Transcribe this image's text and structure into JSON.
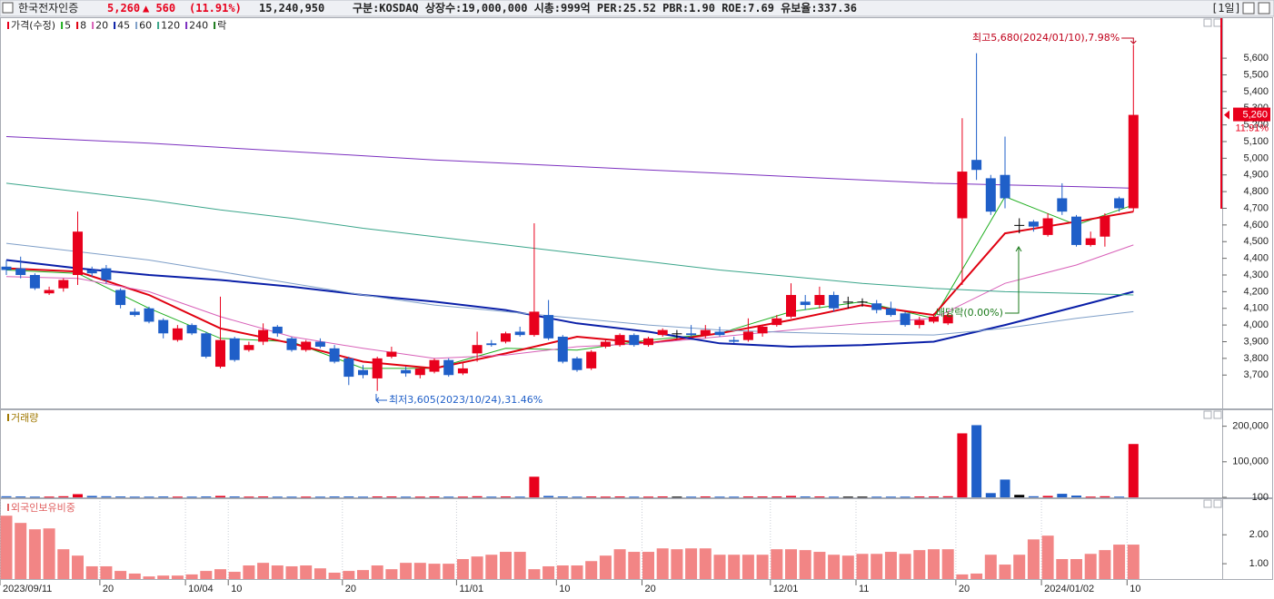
{
  "header": {
    "name": "한국전자인증",
    "price": "5,260",
    "change": "▲ 560",
    "change_pct": "(11.91%)",
    "volume": "15,240,950",
    "info": "구분:KOSDAQ 상장수:19,000,000 시총:999억 PER:25.52 PBR:1.90 ROE:7.69 유보율:337.36",
    "period": "[1일]"
  },
  "chart_data": [
    {
      "type": "candlestick",
      "price_legend": "가격(수정)",
      "ex_dividend_legend": "락",
      "up_color": "#e8001c",
      "down_color": "#1f5fc8",
      "flat_color": "#000000",
      "last_price_label": "5,260",
      "last_change_label": "11.91%",
      "annotations": [
        "최고5,680(2024/01/10),7.98%",
        "최저3,605(2023/10/24),31.46%",
        "배당락(0.00%)"
      ],
      "categories": [
        "2023/09/11",
        null,
        null,
        null,
        null,
        null,
        null,
        "20",
        null,
        null,
        null,
        null,
        null,
        "10/04",
        null,
        null,
        "10",
        null,
        null,
        null,
        null,
        null,
        null,
        null,
        "20",
        null,
        null,
        null,
        null,
        null,
        null,
        null,
        "11/01",
        null,
        null,
        null,
        null,
        null,
        null,
        "10",
        null,
        null,
        null,
        null,
        null,
        "20",
        null,
        null,
        null,
        null,
        null,
        null,
        null,
        null,
        "12/01",
        null,
        null,
        null,
        null,
        null,
        "11",
        null,
        null,
        null,
        null,
        null,
        null,
        "20",
        null,
        null,
        null,
        null,
        null,
        "2024/01/02",
        null,
        null,
        null,
        null,
        null,
        "10"
      ],
      "open": [
        4350,
        4340,
        4300,
        4190,
        4220,
        4300,
        4330,
        4340,
        4210,
        4080,
        4100,
        4030,
        3910,
        4000,
        3950,
        3750,
        3920,
        3850,
        3900,
        3990,
        3920,
        3850,
        3900,
        3860,
        3800,
        3730,
        3680,
        3810,
        3730,
        3700,
        3720,
        3790,
        3710,
        3830,
        3890,
        3900,
        3960,
        3940,
        4060,
        3930,
        3800,
        3740,
        3870,
        3880,
        3940,
        3880,
        3940,
        3950,
        3950,
        3940,
        3960,
        3910,
        3910,
        3950,
        4000,
        4050,
        4140,
        4120,
        4180,
        4140,
        4140,
        4130,
        4100,
        4070,
        4000,
        4020,
        4010,
        4640,
        4990,
        4880,
        4900,
        4600,
        4620,
        4540,
        4760,
        4650,
        4480,
        4530,
        4760,
        4700
      ],
      "high": [
        4390,
        4410,
        4310,
        4230,
        4280,
        4680,
        4350,
        4360,
        4220,
        4100,
        4110,
        4040,
        4000,
        4010,
        3960,
        4170,
        3930,
        3900,
        4010,
        4000,
        3930,
        3910,
        3920,
        3880,
        3810,
        3760,
        3810,
        3870,
        3750,
        3750,
        3800,
        3800,
        3780,
        3960,
        3910,
        3960,
        3990,
        4610,
        4150,
        3940,
        3810,
        3850,
        3910,
        3950,
        3950,
        3930,
        3980,
        3970,
        4000,
        4000,
        3990,
        3930,
        4040,
        4000,
        4060,
        4250,
        4180,
        4230,
        4200,
        4170,
        4160,
        4150,
        4140,
        4080,
        4050,
        4070,
        4080,
        5240,
        5630,
        4900,
        5130,
        4640,
        4630,
        4670,
        4850,
        4660,
        4560,
        4670,
        4770,
        5680
      ],
      "low": [
        4300,
        4280,
        4210,
        4180,
        4200,
        4240,
        4290,
        4250,
        4100,
        4050,
        4010,
        3920,
        3900,
        3940,
        3800,
        3740,
        3780,
        3840,
        3880,
        3930,
        3840,
        3840,
        3860,
        3770,
        3640,
        3680,
        3605,
        3800,
        3690,
        3680,
        3710,
        3690,
        3700,
        3780,
        3870,
        3890,
        3930,
        3930,
        3910,
        3770,
        3720,
        3730,
        3860,
        3870,
        3870,
        3870,
        3930,
        3920,
        3930,
        3920,
        3930,
        3890,
        3900,
        3930,
        3990,
        4040,
        4090,
        4100,
        4080,
        4100,
        4110,
        4070,
        4050,
        3990,
        3980,
        4010,
        4000,
        4240,
        4870,
        4660,
        4700,
        4550,
        4560,
        4530,
        4660,
        4470,
        4470,
        4470,
        4680,
        4680
      ],
      "close": [
        4330,
        4300,
        4220,
        4210,
        4270,
        4560,
        4310,
        4270,
        4120,
        4060,
        4020,
        3950,
        3980,
        3950,
        3810,
        3910,
        3790,
        3880,
        3970,
        3950,
        3850,
        3900,
        3870,
        3780,
        3690,
        3700,
        3800,
        3840,
        3710,
        3740,
        3790,
        3700,
        3740,
        3880,
        3880,
        3950,
        3940,
        4080,
        3920,
        3780,
        3730,
        3840,
        3900,
        3940,
        3880,
        3920,
        3970,
        3950,
        3940,
        3970,
        3940,
        3900,
        3960,
        3990,
        4040,
        4180,
        4120,
        4180,
        4100,
        4140,
        4140,
        4090,
        4060,
        4000,
        4030,
        4050,
        4060,
        4920,
        4930,
        4680,
        4760,
        4600,
        4590,
        4640,
        4680,
        4480,
        4520,
        4650,
        4700,
        5260
      ],
      "series": [
        {
          "name": "5",
          "color": "#1fae1f",
          "x": [
            0,
            5,
            10,
            15,
            20,
            25,
            30,
            35,
            40,
            45,
            50,
            55,
            60,
            65,
            70,
            75,
            79
          ],
          "values": [
            4330,
            4310,
            4100,
            3920,
            3900,
            3740,
            3740,
            3860,
            3850,
            3910,
            3950,
            4080,
            4140,
            4040,
            4770,
            4600,
            4720
          ]
        },
        {
          "name": "8",
          "color": "#e00010",
          "x": [
            0,
            5,
            10,
            15,
            20,
            25,
            30,
            35,
            40,
            45,
            50,
            55,
            60,
            65,
            70,
            75,
            79
          ],
          "values": [
            4340,
            4320,
            4180,
            3980,
            3890,
            3780,
            3740,
            3830,
            3930,
            3890,
            3950,
            4030,
            4120,
            4060,
            4550,
            4620,
            4680
          ]
        },
        {
          "name": "20",
          "color": "#d860b8",
          "x": [
            0,
            5,
            10,
            15,
            20,
            25,
            30,
            35,
            40,
            45,
            50,
            55,
            60,
            65,
            70,
            75,
            79
          ],
          "values": [
            4290,
            4280,
            4200,
            4050,
            3930,
            3860,
            3800,
            3820,
            3870,
            3890,
            3930,
            3970,
            4010,
            4040,
            4250,
            4360,
            4480
          ]
        },
        {
          "name": "45",
          "color": "#0a1fa8",
          "x": [
            0,
            5,
            10,
            15,
            20,
            25,
            30,
            35,
            40,
            45,
            50,
            55,
            60,
            65,
            70,
            75,
            79
          ],
          "values": [
            4390,
            4340,
            4300,
            4270,
            4230,
            4180,
            4140,
            4090,
            4010,
            3960,
            3890,
            3870,
            3880,
            3900,
            4000,
            4110,
            4200
          ]
        },
        {
          "name": "60",
          "color": "#7f9fc8",
          "x": [
            0,
            5,
            10,
            15,
            20,
            25,
            30,
            35,
            40,
            45,
            50,
            55,
            60,
            65,
            70,
            75,
            79
          ],
          "values": [
            4490,
            4440,
            4390,
            4320,
            4250,
            4180,
            4120,
            4080,
            4040,
            4000,
            3970,
            3955,
            3945,
            3940,
            3980,
            4040,
            4080
          ]
        },
        {
          "name": "120",
          "color": "#3aa58a",
          "x": [
            0,
            5,
            10,
            15,
            20,
            25,
            30,
            35,
            40,
            45,
            50,
            55,
            60,
            65,
            70,
            75,
            79
          ],
          "values": [
            4850,
            4800,
            4750,
            4690,
            4640,
            4580,
            4530,
            4480,
            4430,
            4380,
            4330,
            4290,
            4250,
            4220,
            4200,
            4190,
            4180
          ]
        },
        {
          "name": "240",
          "color": "#7b2fbf",
          "x": [
            0,
            5,
            10,
            15,
            20,
            25,
            30,
            35,
            40,
            45,
            50,
            55,
            60,
            65,
            70,
            75,
            79
          ],
          "values": [
            5130,
            5110,
            5090,
            5065,
            5040,
            5015,
            4990,
            4970,
            4950,
            4930,
            4910,
            4890,
            4870,
            4850,
            4840,
            4830,
            4820
          ]
        }
      ],
      "ylim": [
        3500,
        5840
      ],
      "yticks": [
        {
          "value": 3700,
          "label": "3,700"
        },
        {
          "value": 3800,
          "label": "3,800"
        },
        {
          "value": 3900,
          "label": "3,900"
        },
        {
          "value": 4000,
          "label": "4,000"
        },
        {
          "value": 4100,
          "label": "4,100"
        },
        {
          "value": 4200,
          "label": "4,200"
        },
        {
          "value": 4300,
          "label": "4,300"
        },
        {
          "value": 4400,
          "label": "4,400"
        },
        {
          "value": 4500,
          "label": "4,500"
        },
        {
          "value": 4600,
          "label": "4,600"
        },
        {
          "value": 4700,
          "label": "4,700"
        },
        {
          "value": 4800,
          "label": "4,800"
        },
        {
          "value": 4900,
          "label": "4,900"
        },
        {
          "value": 5000,
          "label": "5,000"
        },
        {
          "value": 5100,
          "label": "5,100"
        },
        {
          "value": 5200,
          "label": "5,200"
        },
        {
          "value": 5300,
          "label": "5,300"
        },
        {
          "value": 5400,
          "label": "5,400"
        },
        {
          "value": 5500,
          "label": "5,500"
        },
        {
          "value": 5600,
          "label": "5,600"
        }
      ]
    },
    {
      "type": "bar",
      "title": "거래량",
      "color_by_candle": true,
      "values": [
        3000,
        2500,
        2000,
        2000,
        3000,
        9000,
        4000,
        3000,
        2500,
        2000,
        2000,
        2500,
        2000,
        2000,
        2500,
        4000,
        2500,
        2000,
        2500,
        2000,
        2000,
        2000,
        2000,
        2500,
        2500,
        2000,
        2500,
        2500,
        2000,
        2000,
        2500,
        2000,
        2000,
        3000,
        2000,
        2500,
        2000,
        58000,
        4000,
        2500,
        2000,
        2500,
        2000,
        2500,
        2000,
        2000,
        2500,
        2000,
        2000,
        2500,
        2000,
        2000,
        2500,
        2500,
        2500,
        4000,
        2500,
        2500,
        2000,
        2000,
        2000,
        2000,
        2000,
        2000,
        2500,
        2500,
        3000,
        180000,
        203000,
        12000,
        50000,
        7000,
        3000,
        4000,
        10000,
        5000,
        2000,
        3000,
        2000,
        150000
      ],
      "ylim": [
        0,
        245000
      ],
      "yticks": [
        100,
        {
          "value": 100000,
          "label": "100,000"
        },
        {
          "value": 200000,
          "label": "200,000"
        }
      ]
    },
    {
      "type": "bar",
      "title": "외국인보유비중",
      "color": "#f28585",
      "values": [
        2.66,
        2.41,
        2.19,
        2.22,
        1.5,
        1.28,
        0.91,
        0.91,
        0.75,
        0.66,
        0.56,
        0.59,
        0.59,
        0.63,
        0.75,
        0.81,
        0.72,
        0.94,
        1.03,
        0.94,
        0.91,
        0.94,
        0.84,
        0.69,
        0.75,
        0.78,
        0.94,
        0.81,
        1.03,
        1.03,
        1.0,
        1.0,
        1.16,
        1.25,
        1.31,
        1.41,
        1.41,
        0.81,
        0.91,
        0.94,
        0.94,
        1.09,
        1.28,
        1.5,
        1.41,
        1.41,
        1.53,
        1.5,
        1.53,
        1.53,
        1.31,
        1.31,
        1.31,
        1.31,
        1.5,
        1.5,
        1.47,
        1.41,
        1.31,
        1.28,
        1.34,
        1.34,
        1.41,
        1.34,
        1.47,
        1.5,
        1.5,
        0.63,
        0.66,
        1.31,
        0.97,
        1.31,
        1.84,
        1.97,
        1.16,
        1.16,
        1.34,
        1.47,
        1.66,
        1.66
      ],
      "ylim": [
        0.47,
        3.2
      ],
      "yticks": [
        {
          "value": 1,
          "label": "1.00"
        },
        {
          "value": 2,
          "label": "2.00"
        }
      ]
    }
  ]
}
